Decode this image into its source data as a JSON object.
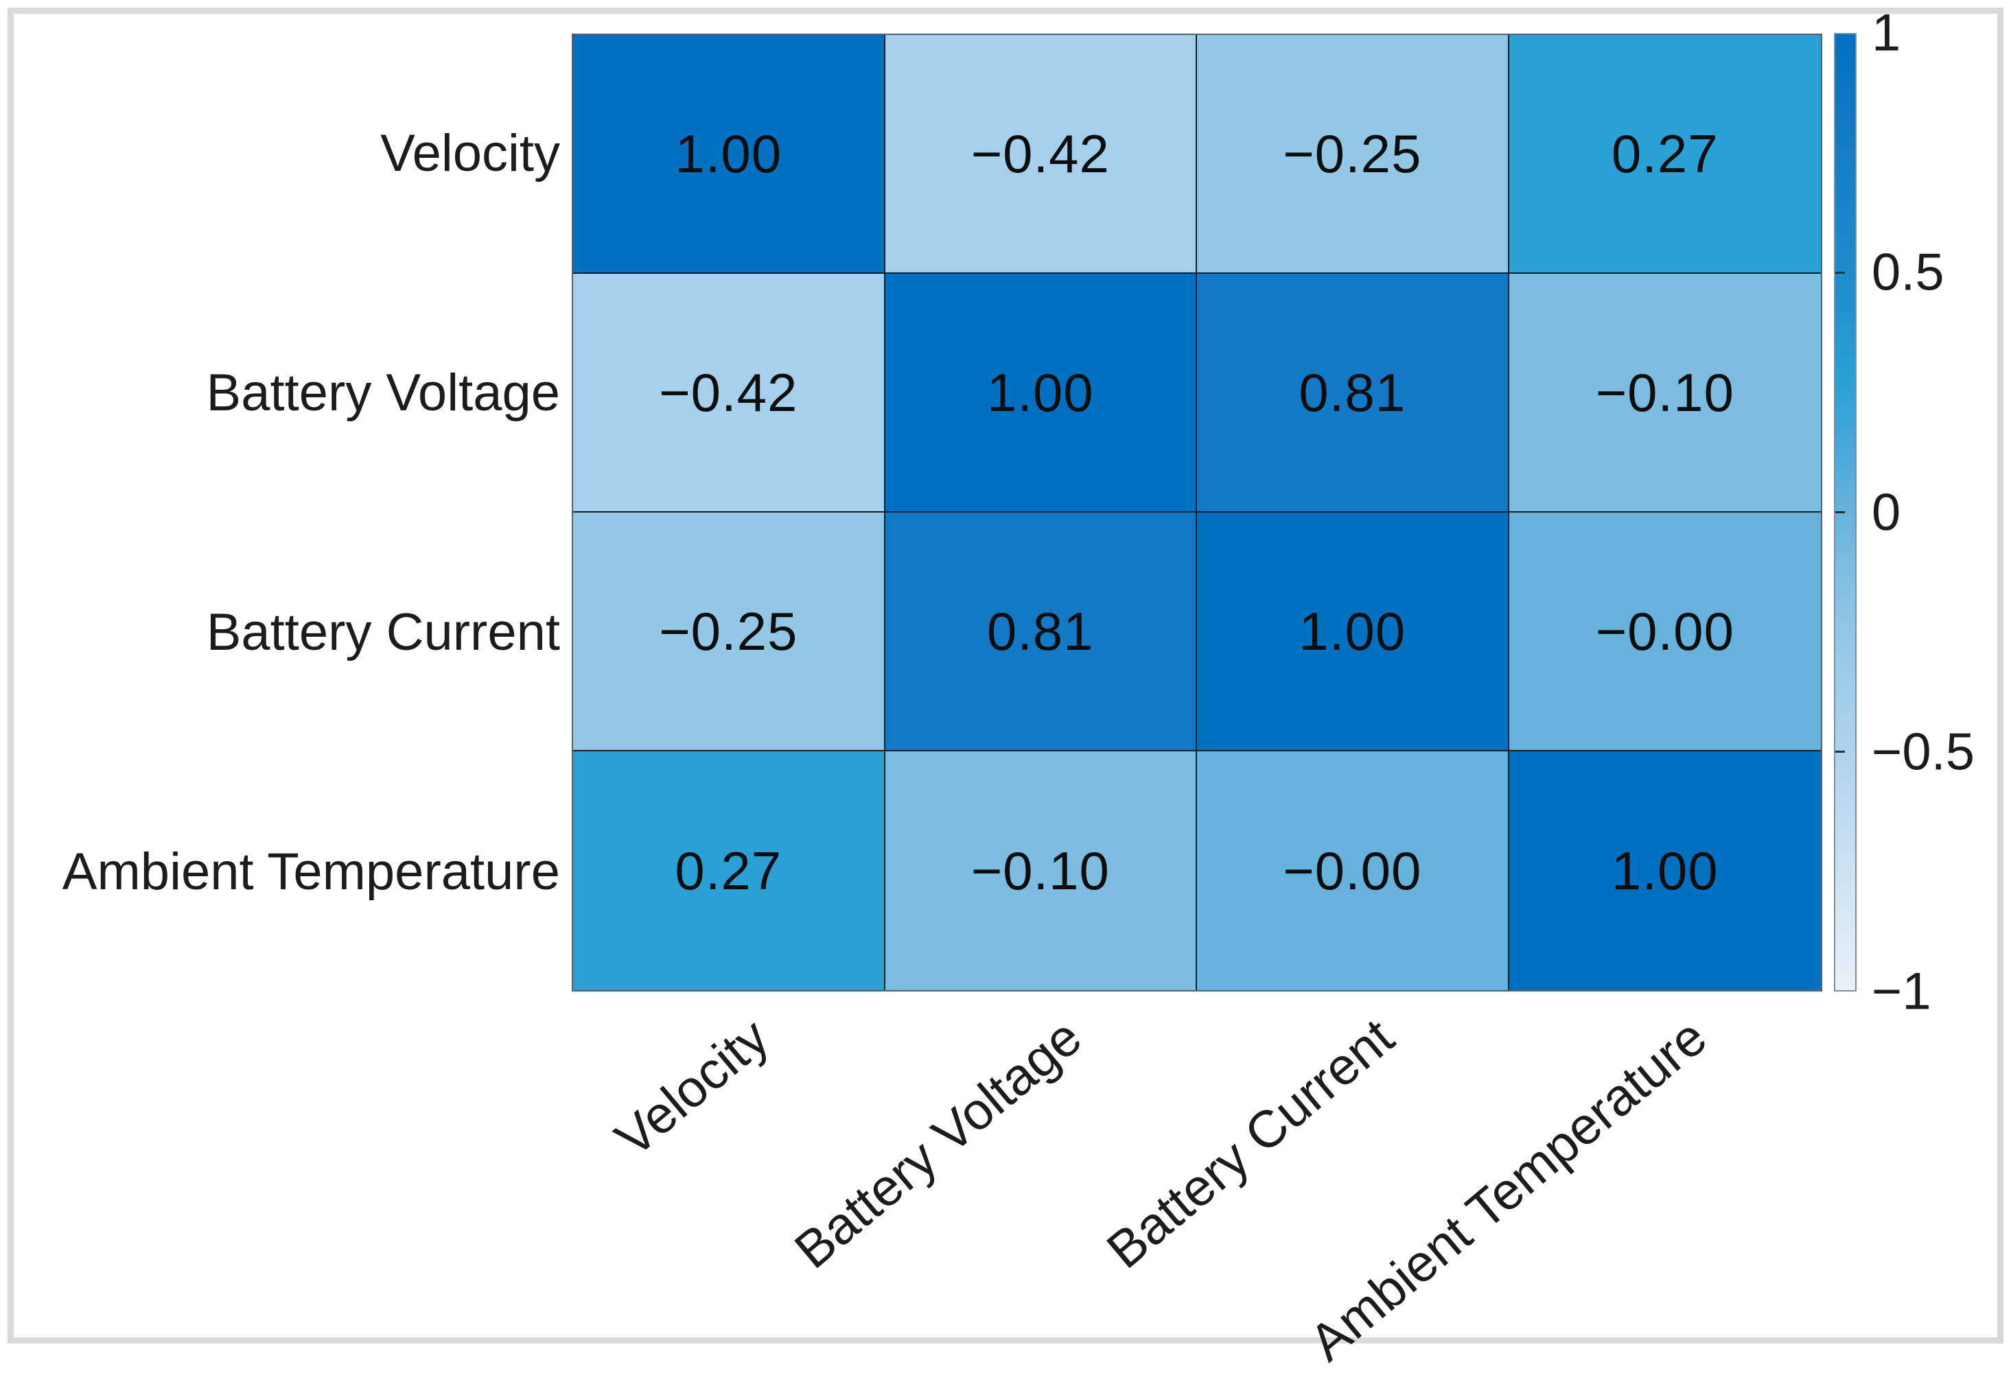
{
  "chart_data": {
    "type": "heatmap",
    "title": "",
    "xlabel": "",
    "ylabel": "",
    "categories": [
      "Velocity",
      "Battery Voltage",
      "Battery Current",
      "Ambient Temperature"
    ],
    "matrix": [
      [
        1.0,
        -0.42,
        -0.25,
        0.27
      ],
      [
        -0.42,
        1.0,
        0.81,
        -0.1
      ],
      [
        -0.25,
        0.81,
        1.0,
        -0.0
      ],
      [
        0.27,
        -0.1,
        -0.0,
        1.0
      ]
    ],
    "cell_labels": [
      [
        "1.00",
        "−0.42",
        "−0.25",
        "0.27"
      ],
      [
        "−0.42",
        "1.00",
        "0.81",
        "−0.10"
      ],
      [
        "−0.25",
        "0.81",
        "1.00",
        "−0.00"
      ],
      [
        "0.27",
        "−0.10",
        "−0.00",
        "1.00"
      ]
    ],
    "value_range": [
      -1,
      1
    ],
    "legend_position": "right",
    "grid_on": true,
    "colorbar": {
      "ticks": [
        {
          "value": 1,
          "label": "1"
        },
        {
          "value": 0.5,
          "label": "0.5"
        },
        {
          "value": 0,
          "label": "0"
        },
        {
          "value": -0.5,
          "label": "−0.5"
        },
        {
          "value": -1,
          "label": "−1"
        }
      ]
    },
    "colormap_stops": [
      {
        "value": -1,
        "color": "#e9f1f9"
      },
      {
        "value": -0.5,
        "color": "#aed3ec"
      },
      {
        "value": -0.25,
        "color": "#92c7e6"
      },
      {
        "value": -0.1,
        "color": "#7cbce0"
      },
      {
        "value": 0,
        "color": "#67b2dc"
      },
      {
        "value": 0.27,
        "color": "#2aa0d5"
      },
      {
        "value": 0.5,
        "color": "#1e8ccb"
      },
      {
        "value": 0.81,
        "color": "#1379c4"
      },
      {
        "value": 1,
        "color": "#0070c0"
      }
    ],
    "colors": {
      "cell_text": "#0d0d0d",
      "axis_text": "#1c1c1c",
      "grid_line": "#13202c",
      "outer_border": "#55626a",
      "colorbar_outline": "#828c92",
      "page_frame": "#d9d9d9",
      "background": "#ffffff"
    }
  }
}
